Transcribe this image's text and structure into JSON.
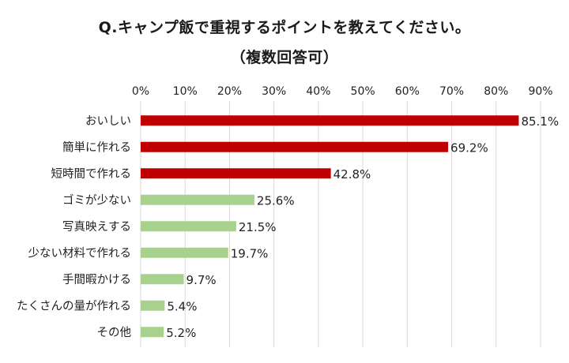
{
  "chart_data": {
    "type": "bar",
    "orientation": "horizontal",
    "title": "Q.キャンプ飯で重視するポイントを教えてください。",
    "subtitle": "（複数回答可）",
    "categories": [
      "おいしい",
      "簡単に作れる",
      "短時間で作れる",
      "ゴミが少ない",
      "写真映えする",
      "少ない材料で作れる",
      "手間暇かける",
      "たくさんの量が作れる",
      "その他"
    ],
    "values": [
      85.1,
      69.2,
      42.8,
      25.6,
      21.5,
      19.7,
      9.7,
      5.4,
      5.2
    ],
    "value_labels": [
      "85.1%",
      "69.2%",
      "42.8%",
      "25.6%",
      "21.5%",
      "19.7%",
      "9.7%",
      "5.4%",
      "5.2%"
    ],
    "xlim": [
      0,
      90
    ],
    "ticks": [
      0,
      10,
      20,
      30,
      40,
      50,
      60,
      70,
      80,
      90
    ],
    "tick_labels": [
      "0%",
      "10%",
      "20%",
      "30%",
      "40%",
      "50%",
      "60%",
      "70%",
      "80%",
      "90%"
    ],
    "axis_position": "top",
    "grid": true,
    "colors": {
      "highlight": "#c00000",
      "normal": "#a9d18e",
      "grid": "#d9d9d9"
    },
    "highlight_count": 3
  }
}
